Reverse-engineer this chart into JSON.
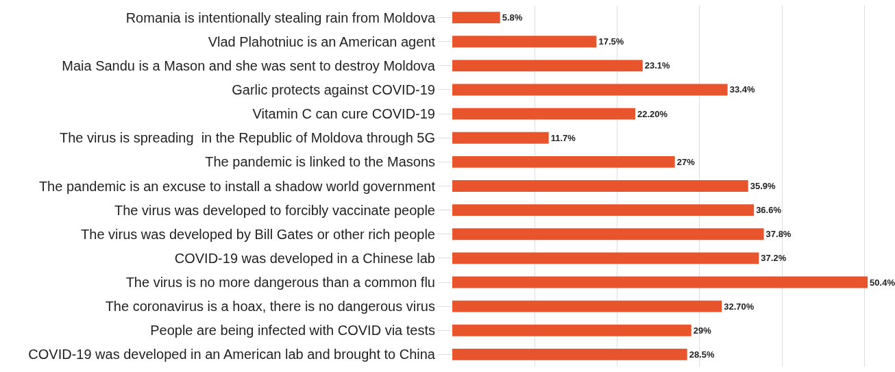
{
  "chart_data": {
    "type": "bar",
    "orientation": "horizontal",
    "categories": [
      "Romania is intentionally stealing rain from Moldova",
      "Vlad Plahotniuc is an American agent",
      "Maia Sandu is a Mason and she was sent to destroy Moldova",
      "Garlic protects against COVID-19",
      "Vitamin C can cure COVID-19",
      "The virus is spreading  in the Republic of Moldova through 5G",
      "The pandemic is linked to the Masons",
      "The pandemic is an excuse to install a shadow world government",
      "The virus was developed to forcibly vaccinate people",
      "The virus was developed by Bill Gates or other rich people",
      "COVID-19 was developed in a Chinese lab",
      "The virus is no more dangerous than a common flu",
      "The coronavirus is a hoax, there is no dangerous virus",
      "People are being infected with COVID via tests",
      "COVID-19 was developed in an American lab and brought to China"
    ],
    "values": [
      5.8,
      17.5,
      23.1,
      33.4,
      22.2,
      11.7,
      27,
      35.9,
      36.6,
      37.8,
      37.2,
      50.4,
      32.7,
      29,
      28.5
    ],
    "value_labels": [
      "5.8%",
      "17.5%",
      "23.1%",
      "33.4%",
      "22.20%",
      "11.7%",
      "27%",
      "35.9%",
      "36.6%",
      "37.8%",
      "37.2%",
      "50.4%",
      "32.70%",
      "29%",
      "28.5%"
    ],
    "color": "#e8542c",
    "grid": "x",
    "tick_labels": "y",
    "legend": false
  }
}
